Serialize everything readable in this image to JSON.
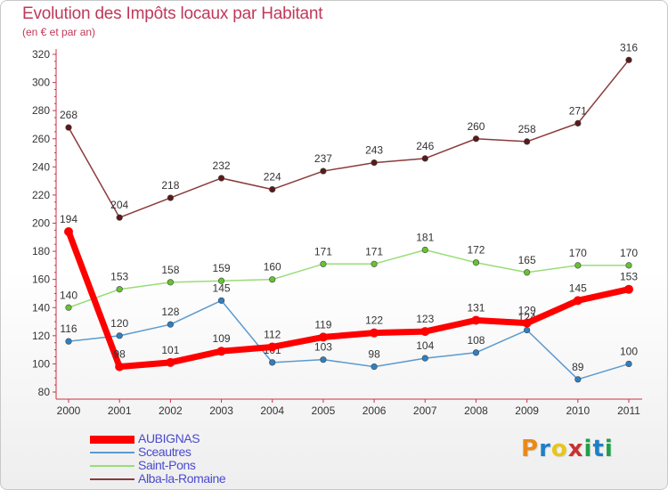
{
  "title": "Evolution des Impôts locaux par Habitant",
  "subtitle": "(en € et par an)",
  "logo": {
    "text": "Proxiti",
    "colors": [
      "#e88a1a",
      "#1f7fc7",
      "#e8c51a",
      "#c83232",
      "#1fa04a",
      "#1f7fc7",
      "#1fa04a"
    ]
  },
  "chart_data": {
    "type": "line",
    "x": [
      "2000",
      "2001",
      "2002",
      "2003",
      "2004",
      "2005",
      "2006",
      "2007",
      "2008",
      "2009",
      "2010",
      "2011"
    ],
    "ylim": [
      80,
      320
    ],
    "yticks": [
      80,
      100,
      120,
      140,
      160,
      180,
      200,
      220,
      240,
      260,
      280,
      300,
      320
    ],
    "grid": false,
    "legend_position": "bottom-left",
    "series": [
      {
        "name": "Alba-la-Romaine",
        "color": "#8a3a3a",
        "marker": "#5a1a1a",
        "values": [
          268,
          204,
          218,
          232,
          224,
          237,
          243,
          246,
          260,
          258,
          271,
          316
        ]
      },
      {
        "name": "Saint-Pons",
        "color": "#99dd77",
        "marker": "#66c233",
        "values": [
          140,
          153,
          158,
          159,
          160,
          171,
          171,
          181,
          172,
          165,
          170,
          170
        ]
      },
      {
        "name": "Sceautres",
        "color": "#5a9ad0",
        "marker": "#2f7fc1",
        "values": [
          116,
          120,
          128,
          145,
          101,
          103,
          98,
          104,
          108,
          124,
          89,
          100
        ]
      },
      {
        "name": "AUBIGNAS",
        "color": "#ff0000",
        "marker": "#ff0000",
        "values": [
          194,
          98,
          101,
          109,
          112,
          119,
          122,
          123,
          131,
          129,
          145,
          153
        ]
      }
    ],
    "legend_order": [
      "AUBIGNAS",
      "Sceautres",
      "Saint-Pons",
      "Alba-la-Romaine"
    ]
  }
}
